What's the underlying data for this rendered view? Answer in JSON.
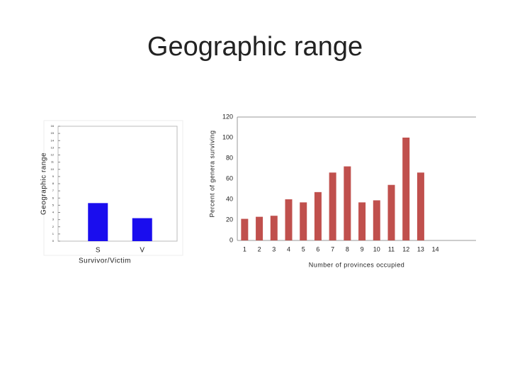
{
  "slide": {
    "title": "Geographic range"
  },
  "chart_data": [
    {
      "type": "bar",
      "ylabel": "Geographic range",
      "xlabel": "Survivor/Victim",
      "categories": [
        "S",
        "V"
      ],
      "values": [
        5.3,
        3.2
      ],
      "color": "#1a0dee",
      "ylim": [
        0,
        16
      ],
      "yticks": [
        0,
        1,
        2,
        3,
        4,
        5,
        6,
        7,
        8,
        9,
        10,
        11,
        12,
        13,
        14,
        15,
        16
      ]
    },
    {
      "type": "bar",
      "ylabel": "Percent of genera surviving",
      "xlabel": "Number of provinces occupied",
      "categories": [
        1,
        2,
        3,
        4,
        5,
        6,
        7,
        8,
        9,
        10,
        11,
        12,
        13,
        14
      ],
      "values": [
        21,
        23,
        24,
        40,
        37,
        47,
        66,
        72,
        37,
        39,
        54,
        100,
        66,
        null
      ],
      "color": "#c0504d",
      "ylim": [
        0,
        120
      ],
      "yticks": [
        0,
        20,
        40,
        60,
        80,
        100,
        120
      ]
    }
  ]
}
